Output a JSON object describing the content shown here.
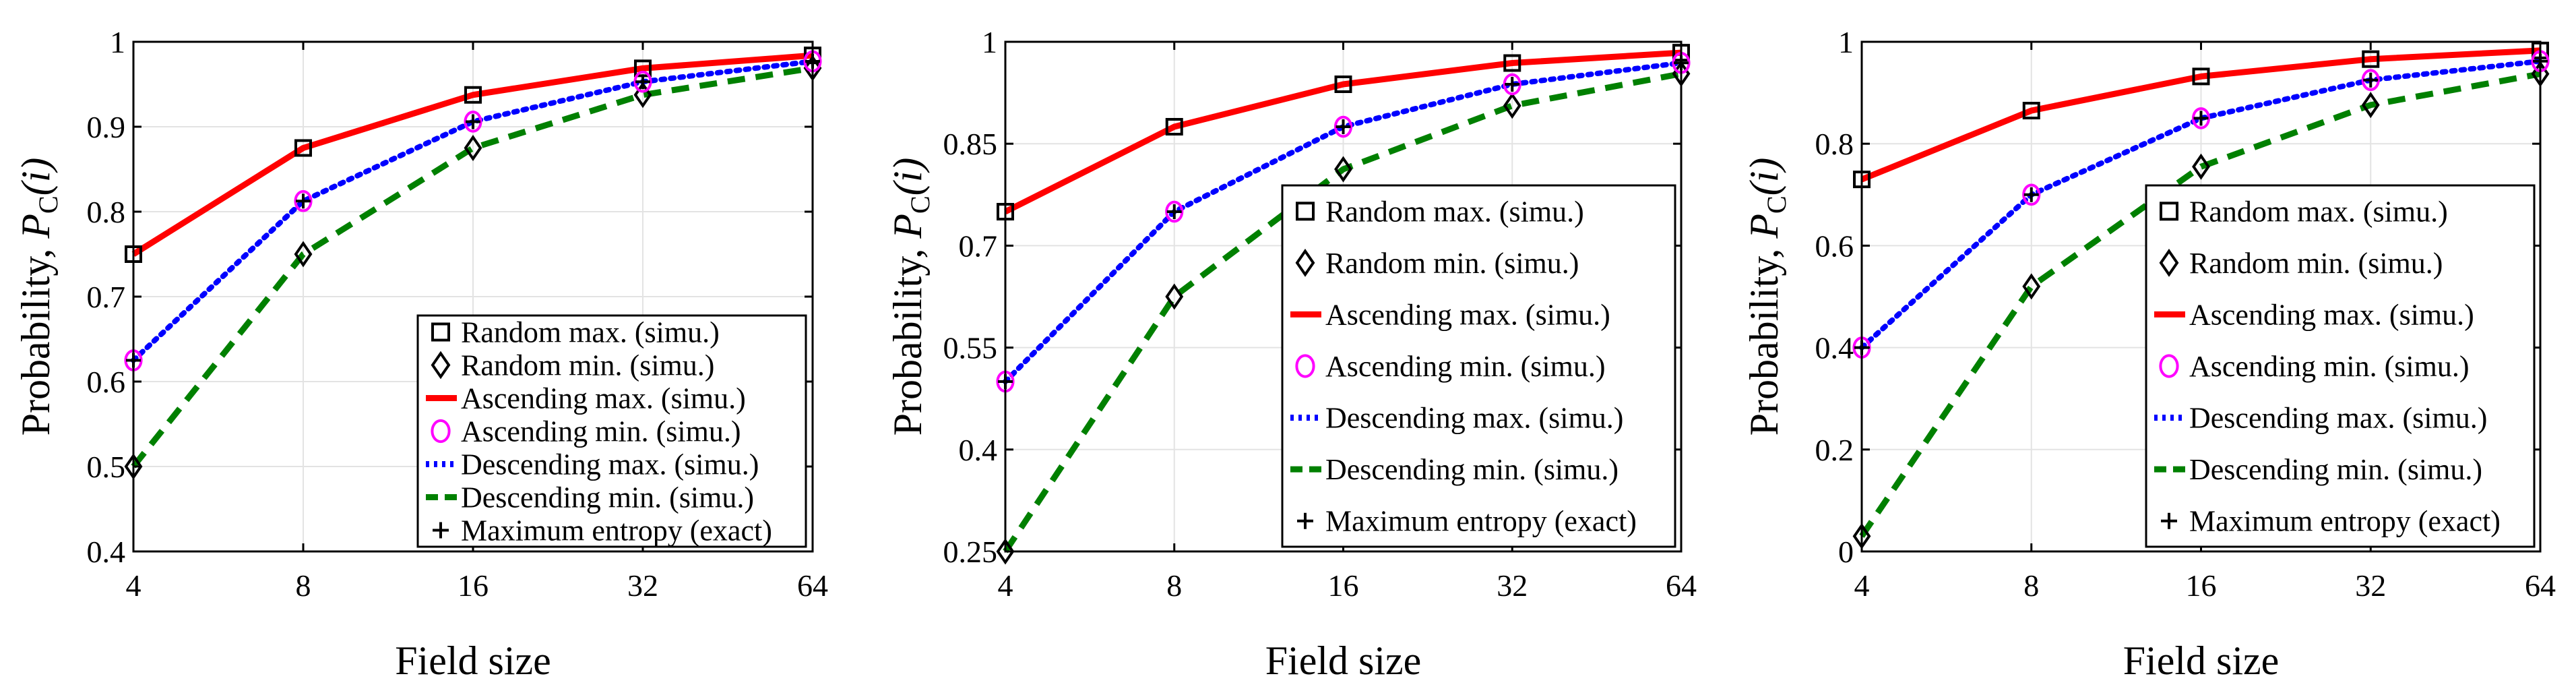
{
  "chart_data": [
    {
      "type": "line",
      "xlabel": "Field size",
      "ylabel": "Probability, P_C(i)",
      "ylabel_main": "Probability, ",
      "ylabel_P": "P",
      "ylabel_sub": "C",
      "ylabel_arg": "(i)",
      "x": [
        4,
        8,
        16,
        32,
        64
      ],
      "x_ticks": [
        "4",
        "8",
        "16",
        "32",
        "64"
      ],
      "ylim": [
        0.4,
        1.0
      ],
      "y_ticks": [
        0.4,
        0.5,
        0.6,
        0.7,
        0.8,
        0.9,
        1.0
      ],
      "y_tick_labels": [
        "0.4",
        "0.5",
        "0.6",
        "0.7",
        "0.8",
        "0.9",
        "1"
      ],
      "grid": true,
      "legend_position": "lower-right",
      "series": [
        {
          "name": "Random max. (simu.)",
          "values": [
            0.75,
            0.875,
            0.9375,
            0.96875,
            0.984
          ],
          "style": "marker",
          "marker": "square",
          "color": "#000000"
        },
        {
          "name": "Random min. (simu.)",
          "values": [
            0.5,
            0.75,
            0.875,
            0.9375,
            0.969
          ],
          "style": "marker",
          "marker": "diamond",
          "color": "#000000"
        },
        {
          "name": "Ascending max. (simu.)",
          "values": [
            0.75,
            0.875,
            0.9375,
            0.96875,
            0.984
          ],
          "style": "solid",
          "color": "#ff0000"
        },
        {
          "name": "Ascending min. (simu.)",
          "values": [
            0.625,
            0.8125,
            0.906,
            0.953,
            0.977
          ],
          "style": "marker",
          "marker": "circle",
          "color": "#ff00ff"
        },
        {
          "name": "Descending max. (simu.)",
          "values": [
            0.625,
            0.8125,
            0.906,
            0.953,
            0.977
          ],
          "style": "dotted",
          "color": "#0000ff"
        },
        {
          "name": "Descending min. (simu.)",
          "values": [
            0.5,
            0.75,
            0.875,
            0.9375,
            0.969
          ],
          "style": "dashed",
          "color": "#008000"
        },
        {
          "name": "Maximum entropy (exact)",
          "values": [
            0.625,
            0.8125,
            0.906,
            0.953,
            0.977
          ],
          "style": "marker",
          "marker": "plus",
          "color": "#000000"
        }
      ]
    },
    {
      "type": "line",
      "xlabel": "Field size",
      "ylabel": "Probability, P_C(i)",
      "ylabel_main": "Probability, ",
      "ylabel_P": "P",
      "ylabel_sub": "C",
      "ylabel_arg": "(i)",
      "x": [
        4,
        8,
        16,
        32,
        64
      ],
      "x_ticks": [
        "4",
        "8",
        "16",
        "32",
        "64"
      ],
      "ylim": [
        0.25,
        1.0
      ],
      "y_ticks": [
        0.25,
        0.4,
        0.55,
        0.7,
        0.85,
        1.0
      ],
      "y_tick_labels": [
        "0.25",
        "0.4",
        "0.55",
        "0.7",
        "0.85",
        "1"
      ],
      "grid": true,
      "legend_position": "lower-right",
      "series": [
        {
          "name": "Random max. (simu.)",
          "values": [
            0.75,
            0.875,
            0.9375,
            0.96875,
            0.984
          ],
          "style": "marker",
          "marker": "square",
          "color": "#000000"
        },
        {
          "name": "Random min. (simu.)",
          "values": [
            0.25,
            0.625,
            0.8125,
            0.906,
            0.953
          ],
          "style": "marker",
          "marker": "diamond",
          "color": "#000000"
        },
        {
          "name": "Ascending max. (simu.)",
          "values": [
            0.75,
            0.875,
            0.9375,
            0.96875,
            0.984
          ],
          "style": "solid",
          "color": "#ff0000"
        },
        {
          "name": "Ascending min. (simu.)",
          "values": [
            0.5,
            0.75,
            0.875,
            0.9375,
            0.969
          ],
          "style": "marker",
          "marker": "circle",
          "color": "#ff00ff"
        },
        {
          "name": "Descending max. (simu.)",
          "values": [
            0.5,
            0.75,
            0.875,
            0.9375,
            0.969
          ],
          "style": "dotted",
          "color": "#0000ff"
        },
        {
          "name": "Descending min. (simu.)",
          "values": [
            0.25,
            0.625,
            0.8125,
            0.906,
            0.953
          ],
          "style": "dashed",
          "color": "#008000"
        },
        {
          "name": "Maximum entropy (exact)",
          "values": [
            0.5,
            0.75,
            0.875,
            0.9375,
            0.969
          ],
          "style": "marker",
          "marker": "plus",
          "color": "#000000"
        }
      ]
    },
    {
      "type": "line",
      "xlabel": "Field size",
      "ylabel": "Probability, P_C(i)",
      "ylabel_main": "Probability, ",
      "ylabel_P": "P",
      "ylabel_sub": "C",
      "ylabel_arg": "(i)",
      "x": [
        4,
        8,
        16,
        32,
        64
      ],
      "x_ticks": [
        "4",
        "8",
        "16",
        "32",
        "64"
      ],
      "ylim": [
        0,
        1.0
      ],
      "y_ticks": [
        0,
        0.2,
        0.4,
        0.6,
        0.8,
        1.0
      ],
      "y_tick_labels": [
        "0",
        "0.2",
        "0.4",
        "0.6",
        "0.8",
        "1"
      ],
      "grid": true,
      "legend_position": "lower-right",
      "series": [
        {
          "name": "Random max. (simu.)",
          "values": [
            0.73,
            0.865,
            0.932,
            0.966,
            0.983
          ],
          "style": "marker",
          "marker": "square",
          "color": "#000000"
        },
        {
          "name": "Random min. (simu.)",
          "values": [
            0.03,
            0.52,
            0.755,
            0.876,
            0.937
          ],
          "style": "marker",
          "marker": "diamond",
          "color": "#000000"
        },
        {
          "name": "Ascending max. (simu.)",
          "values": [
            0.73,
            0.865,
            0.932,
            0.966,
            0.983
          ],
          "style": "solid",
          "color": "#ff0000"
        },
        {
          "name": "Ascending min. (simu.)",
          "values": [
            0.4,
            0.7,
            0.85,
            0.925,
            0.962
          ],
          "style": "marker",
          "marker": "circle",
          "color": "#ff00ff"
        },
        {
          "name": "Descending max. (simu.)",
          "values": [
            0.4,
            0.7,
            0.85,
            0.925,
            0.962
          ],
          "style": "dotted",
          "color": "#0000ff"
        },
        {
          "name": "Descending min. (simu.)",
          "values": [
            0.03,
            0.52,
            0.755,
            0.876,
            0.937
          ],
          "style": "dashed",
          "color": "#008000"
        },
        {
          "name": "Maximum entropy (exact)",
          "values": [
            0.4,
            0.7,
            0.85,
            0.925,
            0.962
          ],
          "style": "marker",
          "marker": "plus",
          "color": "#000000"
        }
      ]
    }
  ]
}
